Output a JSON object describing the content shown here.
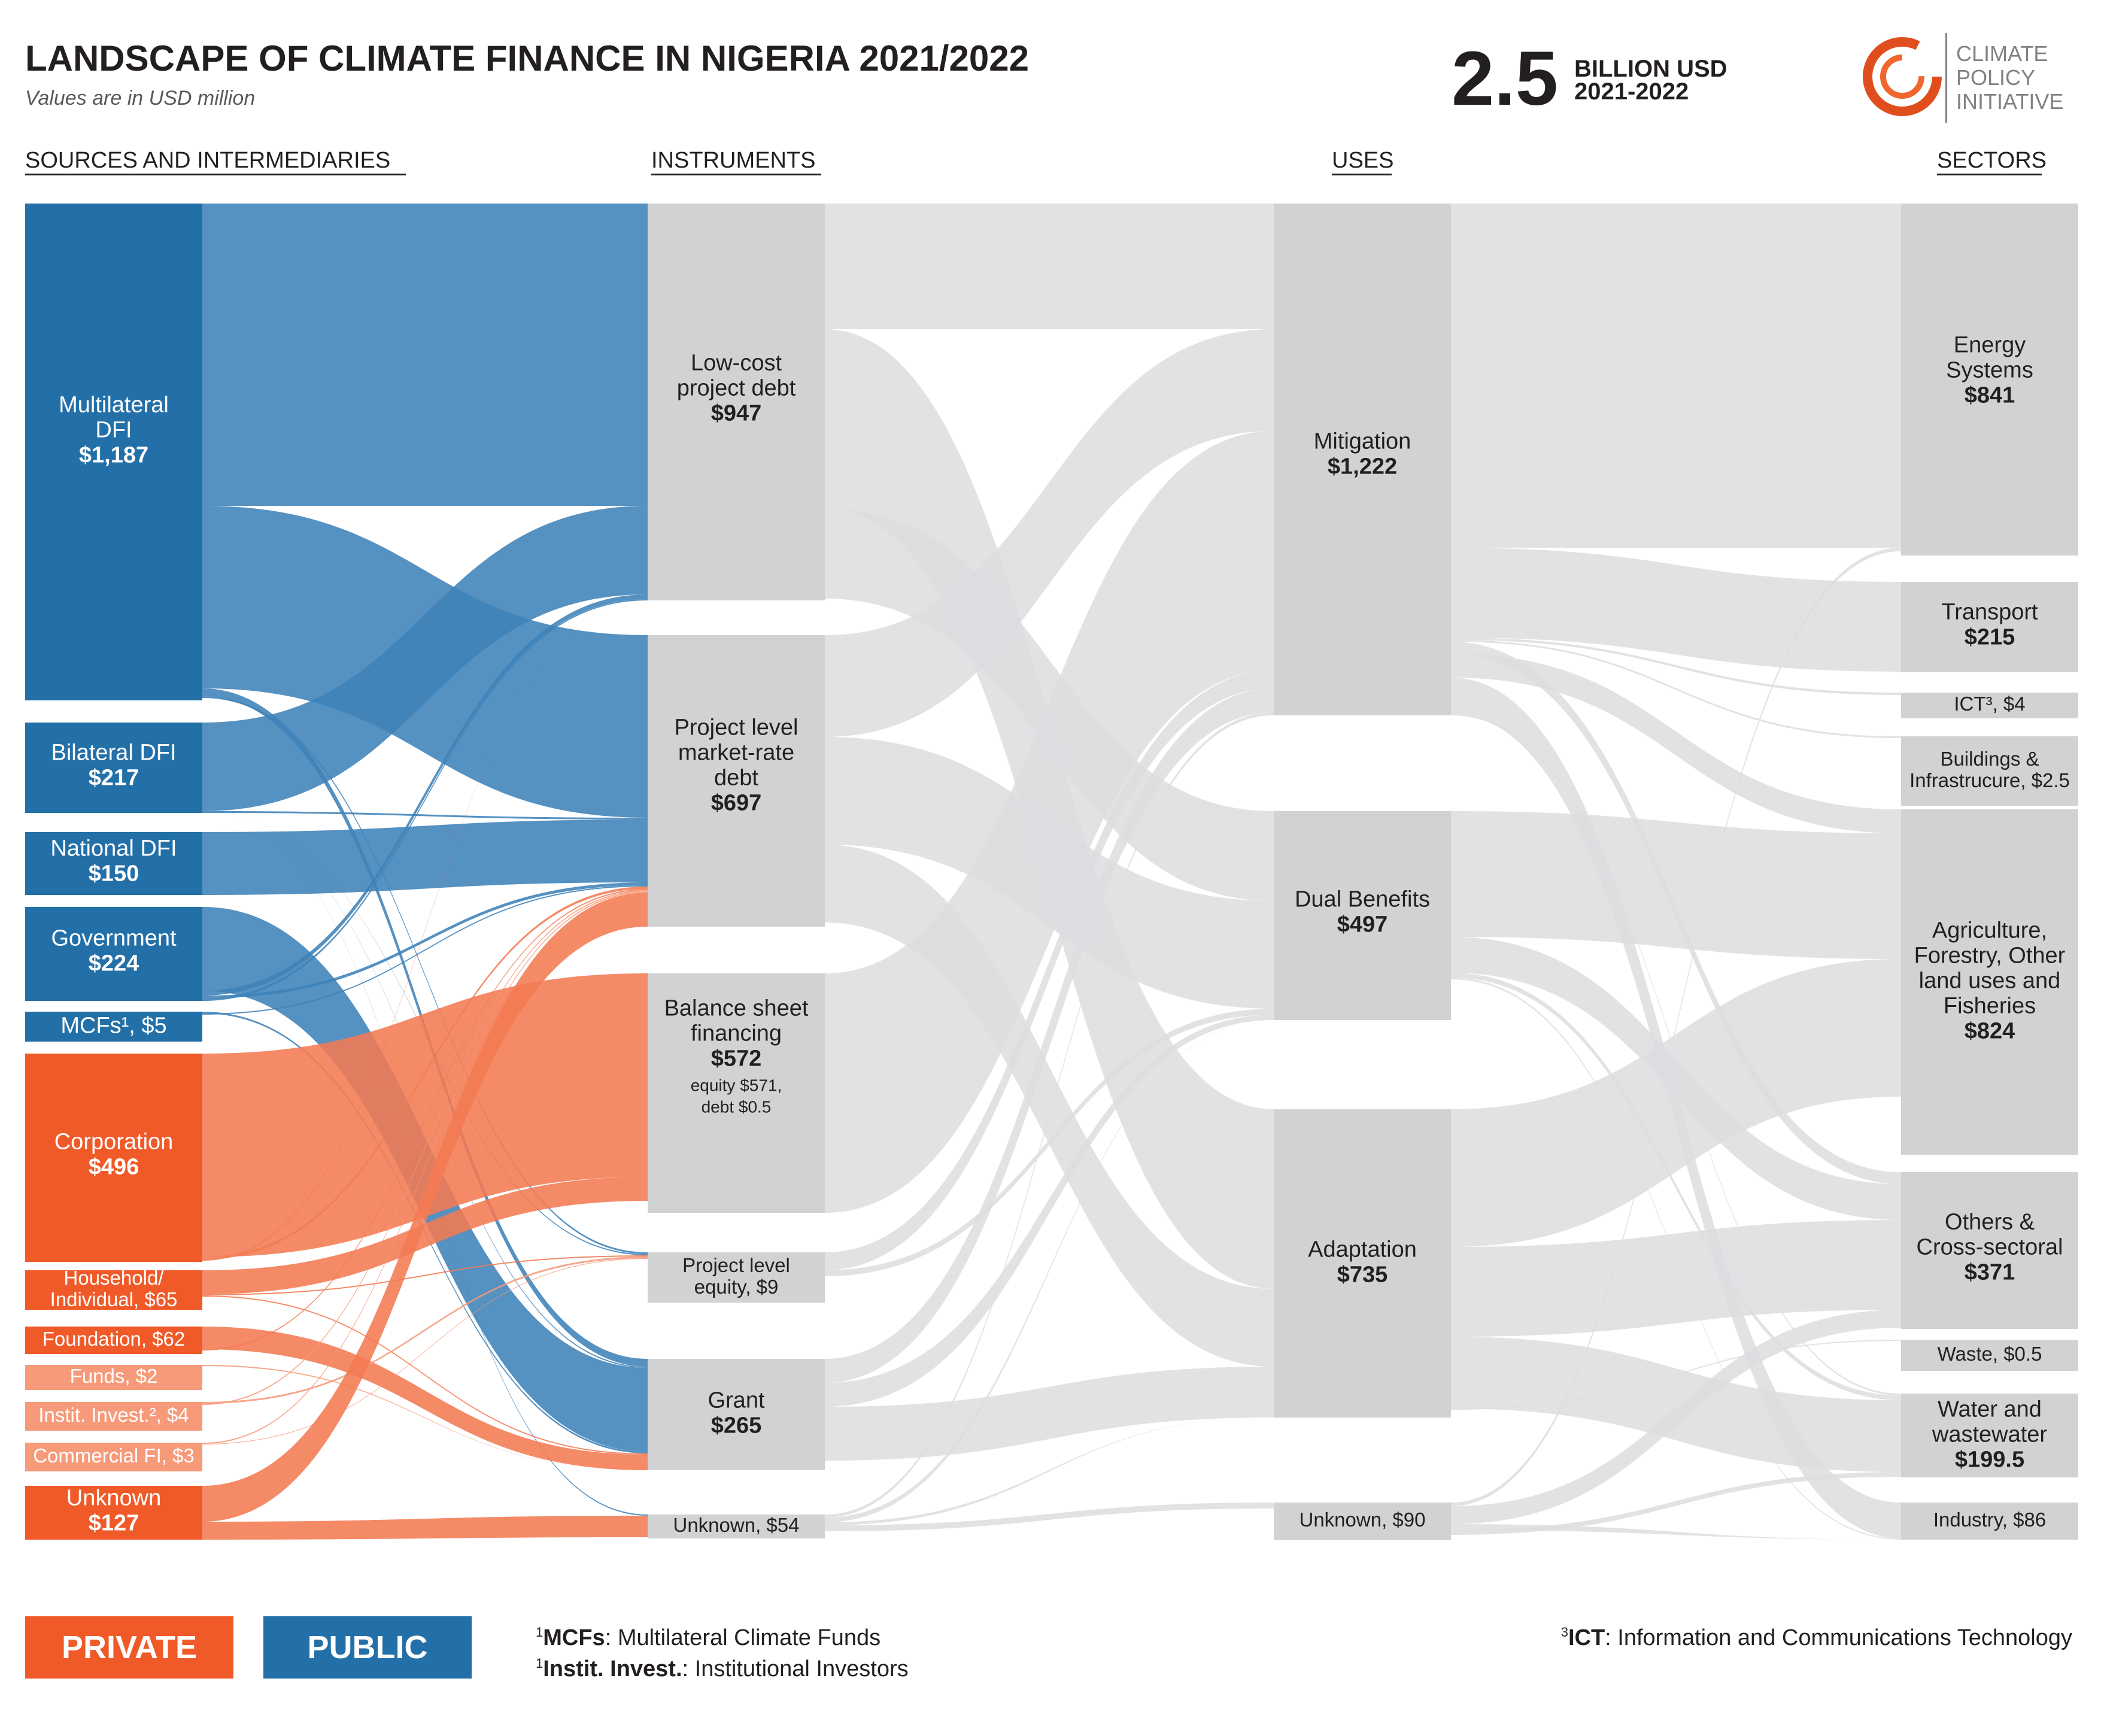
{
  "header": {
    "title": "LANDSCAPE OF CLIMATE FINANCE IN NIGERIA 2021/2022",
    "subtitle": "Values are in USD million",
    "total_value": "2.5",
    "total_unit": "BILLION USD",
    "total_period": "2021-2022",
    "logo_lines": [
      "CLIMATE",
      "POLICY",
      "INITIATIVE"
    ]
  },
  "columns": {
    "sources": "SOURCES AND INTERMEDIARIES",
    "instruments": "INSTRUMENTS",
    "uses": "USES",
    "sectors": "SECTORS"
  },
  "colors": {
    "public": "#2370a8",
    "public_flow": "#3d82b8",
    "private": "#f05a28",
    "private_flow": "#f47a52",
    "private_light": "#f69a7a",
    "grey_node": "#d1d2d4",
    "grey_flow": "#dcdddf"
  },
  "nodes": {
    "src_multilateral": {
      "lines": [
        "Multilateral",
        "DFI"
      ],
      "value": "$1,187"
    },
    "src_bilateral": {
      "lines": [
        "Bilateral DFI"
      ],
      "value": "$217"
    },
    "src_national": {
      "lines": [
        "National DFI"
      ],
      "value": "$150"
    },
    "src_government": {
      "lines": [
        "Government"
      ],
      "value": "$224"
    },
    "src_mcfs": {
      "lines": [
        "MCFs¹, $5"
      ]
    },
    "src_corporation": {
      "lines": [
        "Corporation"
      ],
      "value": "$496"
    },
    "src_household": {
      "lines": [
        "Household/",
        "Individual, $65"
      ]
    },
    "src_foundation": {
      "lines": [
        "Foundation, $62"
      ]
    },
    "src_funds": {
      "lines": [
        "Funds, $2"
      ]
    },
    "src_instit": {
      "lines": [
        "Instit. Invest.², $4"
      ]
    },
    "src_commercial": {
      "lines": [
        "Commercial FI, $3"
      ]
    },
    "src_unknown": {
      "lines": [
        "Unknown"
      ],
      "value": "$127"
    },
    "ins_lowcost": {
      "lines": [
        "Low-cost",
        "project debt"
      ],
      "value": "$947"
    },
    "ins_marketrate": {
      "lines": [
        "Project level",
        "market-rate",
        "debt"
      ],
      "value": "$697"
    },
    "ins_balance": {
      "lines": [
        "Balance sheet",
        "financing"
      ],
      "value": "$572",
      "notes": [
        "equity $571,",
        "debt $0.5"
      ]
    },
    "ins_equity": {
      "lines": [
        "Project level",
        "equity, $9"
      ]
    },
    "ins_grant": {
      "lines": [
        "Grant"
      ],
      "value": "$265"
    },
    "ins_unknown": {
      "lines": [
        "Unknown, $54"
      ]
    },
    "use_mitigation": {
      "lines": [
        "Mitigation"
      ],
      "value": "$1,222"
    },
    "use_dual": {
      "lines": [
        "Dual Benefits"
      ],
      "value": "$497"
    },
    "use_adaptation": {
      "lines": [
        "Adaptation"
      ],
      "value": "$735"
    },
    "use_unknown": {
      "lines": [
        "Unknown, $90"
      ]
    },
    "sec_energy": {
      "lines": [
        "Energy",
        "Systems"
      ],
      "value": "$841"
    },
    "sec_transport": {
      "lines": [
        "Transport"
      ],
      "value": "$215"
    },
    "sec_ict": {
      "lines": [
        "ICT³, $4"
      ]
    },
    "sec_buildings": {
      "lines": [
        "Buildings &",
        "Infrastrucure, $2.5"
      ]
    },
    "sec_agri": {
      "lines": [
        "Agriculture,",
        "Forestry, Other",
        "land uses and",
        "Fisheries"
      ],
      "value": "$824"
    },
    "sec_others": {
      "lines": [
        "Others &",
        "Cross-sectoral"
      ],
      "value": "$371"
    },
    "sec_waste": {
      "lines": [
        "Waste, $0.5"
      ]
    },
    "sec_water": {
      "lines": [
        "Water and",
        "wastewater"
      ],
      "value": "$199.5"
    },
    "sec_industry": {
      "lines": [
        "Industry, $86"
      ]
    }
  },
  "legend": {
    "private": "PRIVATE",
    "public": "PUBLIC",
    "footnote_1a_term": "MCFs",
    "footnote_1a_text": ": Multilateral Climate Funds",
    "footnote_1b_term": "Instit. Invest.",
    "footnote_1b_text": ": Institutional Investors",
    "footnote_3_term": "ICT",
    "footnote_3_text": ": Information and Communications Technology"
  }
}
